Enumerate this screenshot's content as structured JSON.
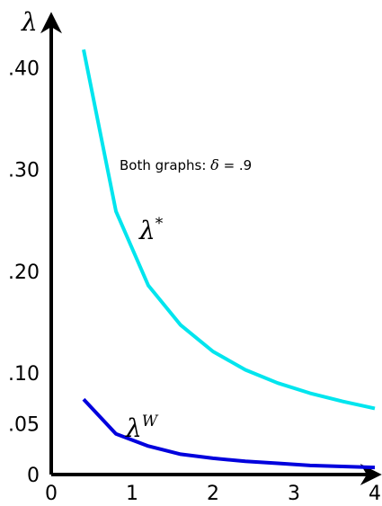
{
  "chart_data": {
    "type": "line",
    "title": "",
    "xlabel": "",
    "ylabel": "λ",
    "xlim": [
      0,
      4
    ],
    "ylim": [
      0,
      0.45
    ],
    "x_ticks": [
      0,
      1,
      2,
      3,
      4
    ],
    "x_tick_labels": [
      "0",
      "1",
      "2",
      "3",
      "4"
    ],
    "y_ticks": [
      0,
      0.05,
      0.1,
      0.2,
      0.3,
      0.4
    ],
    "y_tick_labels": [
      "0",
      ".05",
      ".10",
      ".20",
      ".30",
      ".40"
    ],
    "grid": false,
    "annotation": {
      "text": "Both graphs: ",
      "math_symbol": "δ",
      "math_rest": " = .9"
    },
    "series": [
      {
        "name": "λ*",
        "base": "λ",
        "sup": "*",
        "color": "#00e5ee",
        "x": [
          0.4,
          0.8,
          1.2,
          1.6,
          2.0,
          2.4,
          2.8,
          3.2,
          3.6,
          4.0
        ],
        "y": [
          0.418,
          0.259,
          0.186,
          0.147,
          0.121,
          0.103,
          0.09,
          0.08,
          0.072,
          0.065
        ]
      },
      {
        "name": "λW",
        "base": "λ",
        "sup": "W",
        "color": "#0000dd",
        "x": [
          0.4,
          0.8,
          1.2,
          1.6,
          2.0,
          2.4,
          2.8,
          3.2,
          3.6,
          4.0
        ],
        "y": [
          0.074,
          0.04,
          0.028,
          0.02,
          0.016,
          0.013,
          0.011,
          0.009,
          0.008,
          0.007
        ]
      }
    ]
  }
}
